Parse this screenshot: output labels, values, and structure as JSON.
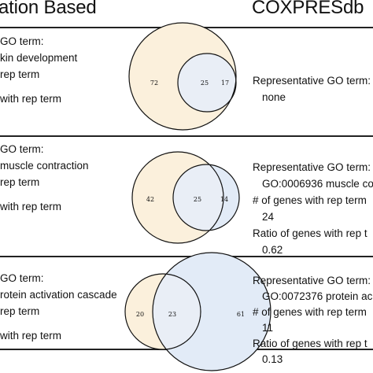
{
  "header": {
    "left_title": "ation Based",
    "right_title": "COXPRESdb"
  },
  "colors": {
    "left_fill": "#fbf0dc",
    "right_fill": "#e2ebf7",
    "overlap_fill": "#e9eef6",
    "stroke": "#111111"
  },
  "panels": [
    {
      "left_lines": [
        "GO term:",
        "kin development",
        "rep term",
        "",
        "with rep term"
      ],
      "right_lines": [
        "Representative GO term:",
        "none",
        "",
        "",
        ""
      ],
      "venn": {
        "left_only": "72",
        "shared": "25",
        "right_only": "17"
      }
    },
    {
      "left_lines": [
        "GO term:",
        "muscle contraction",
        "rep term",
        "",
        "with rep term"
      ],
      "right_lines": [
        "Representative GO term:",
        "GO:0006936 muscle co",
        "# of genes with rep term",
        "24",
        "Ratio of genes with rep t",
        "0.62"
      ],
      "venn": {
        "left_only": "42",
        "shared": "25",
        "right_only": "14"
      }
    },
    {
      "left_lines": [
        "GO term:",
        "rotein activation cascade",
        "rep term",
        "",
        "with rep term"
      ],
      "right_lines": [
        "Representative GO term:",
        "GO:0072376 protein ac",
        "# of genes with rep term",
        "11",
        "Ratio of genes with rep t",
        "0.13"
      ],
      "venn": {
        "left_only": "20",
        "shared": "23",
        "right_only": "61"
      }
    }
  ]
}
